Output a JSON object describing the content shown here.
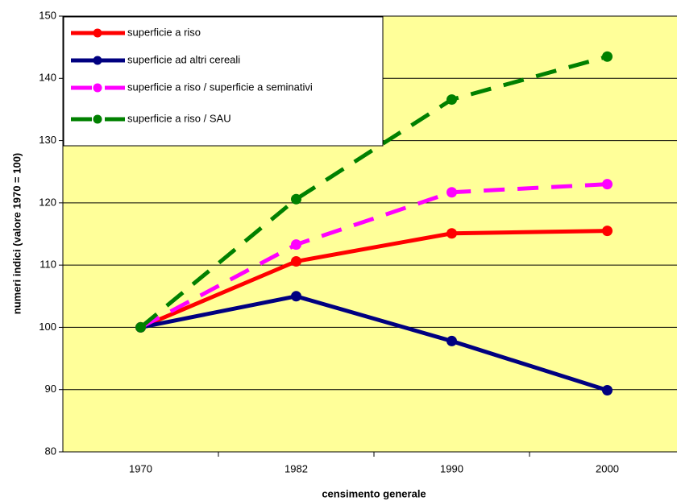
{
  "chart_data": {
    "type": "line",
    "x_label": "censimento generale",
    "y_label": "numeri indici (valore 1970 = 100)",
    "categories": [
      "1970",
      "1982",
      "1990",
      "2000"
    ],
    "series": [
      {
        "name": "superficie a riso",
        "color": "#ff0000",
        "dashed": false,
        "values": [
          100,
          110.6,
          115.1,
          115.5
        ]
      },
      {
        "name": "superficie ad altri cereali",
        "color": "#000080",
        "dashed": false,
        "values": [
          100,
          105,
          97.8,
          89.9
        ]
      },
      {
        "name": "superficie a riso / superficie a seminativi",
        "color": "#ff00ff",
        "dashed": true,
        "values": [
          100,
          113.3,
          121.7,
          123
        ]
      },
      {
        "name": "superficie a riso / SAU",
        "color": "#008000",
        "dashed": true,
        "values": [
          100,
          120.6,
          136.6,
          143.5
        ]
      }
    ],
    "ylim": [
      80,
      150
    ],
    "yticks": [
      80,
      90,
      100,
      110,
      120,
      130,
      140,
      150
    ],
    "grid": true,
    "legend": "top-left"
  }
}
